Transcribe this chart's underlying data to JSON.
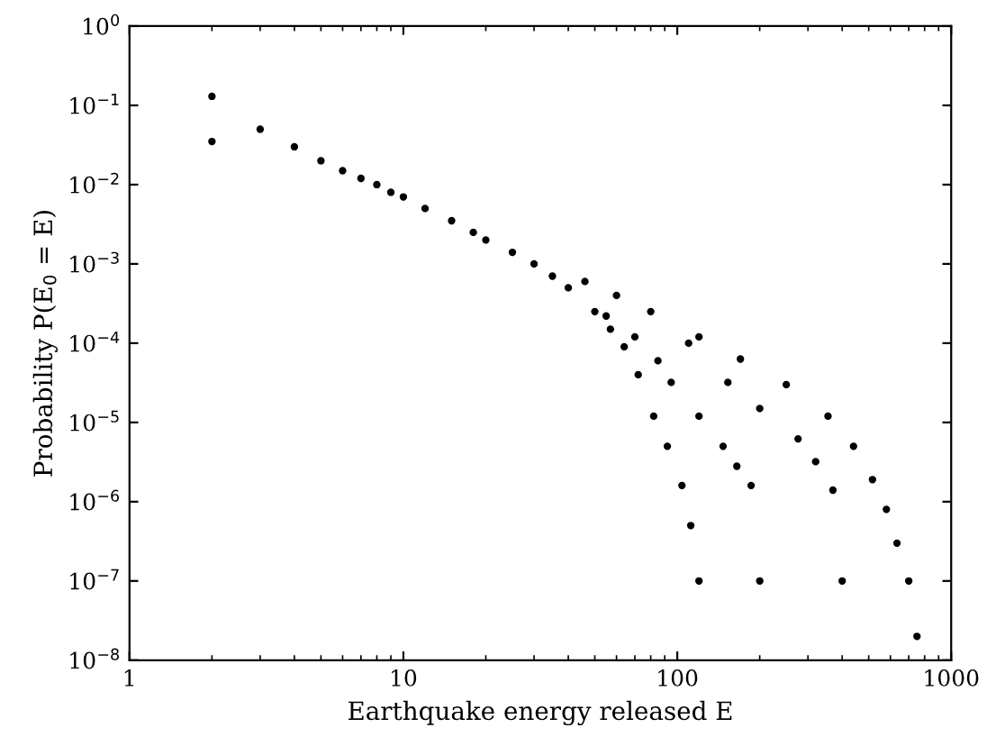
{
  "chart_data": {
    "type": "scatter",
    "xlabel": "Earthquake energy released E",
    "ylabel": "Probability P(E$_{0}$ = E)",
    "log": "xy",
    "marker": "circle",
    "grid": false,
    "xlim": [
      1,
      1000
    ],
    "xticks": [
      1,
      10,
      100,
      1000
    ],
    "ylim": [
      1e-08,
      1
    ],
    "yticks": [
      {
        "value": 1,
        "label": "10$^{0}$"
      },
      {
        "value": 0.1,
        "label": "10$^{−1}$"
      },
      {
        "value": 0.01,
        "label": "10$^{−2}$"
      },
      {
        "value": 0.001,
        "label": "10$^{−3}$"
      },
      {
        "value": 0.0001,
        "label": "10$^{−4}$"
      },
      {
        "value": 1e-05,
        "label": "10$^{−5}$"
      },
      {
        "value": 1e-06,
        "label": "10$^{−6}$"
      },
      {
        "value": 1e-07,
        "label": "10$^{−7}$"
      },
      {
        "value": 1e-08,
        "label": "10$^{−8}$"
      }
    ],
    "series": [
      {
        "color": "#000000",
        "x": [
          2,
          2,
          3,
          4,
          5,
          6,
          7,
          8,
          9,
          10,
          12,
          15,
          18,
          20,
          25,
          30,
          35,
          40
        ],
        "values": [
          0.13,
          0.035,
          0.05,
          0.03,
          0.02,
          0.015,
          0.012,
          0.01,
          0.008,
          0.007,
          0.005,
          0.0035,
          0.0025,
          0.002,
          0.0014,
          0.001,
          0.0007,
          0.0005
        ]
      },
      {
        "color": "#000000",
        "x": [
          50,
          57,
          64,
          72,
          82,
          92,
          104,
          112,
          120
        ],
        "values": [
          0.00025,
          0.00015,
          9e-05,
          4e-05,
          1.2e-05,
          5e-06,
          1.6e-06,
          5e-07,
          1e-07
        ]
      },
      {
        "color": "#000000",
        "x": [
          55,
          70,
          85,
          95,
          120,
          147,
          165,
          186,
          200
        ],
        "values": [
          0.00022,
          0.00012,
          6e-05,
          3.2e-05,
          1.2e-05,
          5e-06,
          2.8e-06,
          1.6e-06,
          1e-07
        ]
      },
      {
        "color": "#000000",
        "x": [
          110,
          153,
          200,
          276,
          320,
          370,
          400
        ],
        "values": [
          0.0001,
          3.2e-05,
          1.5e-05,
          6.2e-06,
          3.2e-06,
          1.4e-06,
          1e-07
        ]
      },
      {
        "color": "#000000",
        "x": [
          46,
          60,
          80,
          120,
          170,
          250,
          355,
          440,
          516,
          580,
          634,
          700,
          750
        ],
        "values": [
          0.0006,
          0.0004,
          0.00025,
          0.00012,
          6.3e-05,
          3e-05,
          1.2e-05,
          5e-06,
          1.9e-06,
          8e-07,
          3e-07,
          1e-07,
          2e-08
        ]
      }
    ]
  }
}
